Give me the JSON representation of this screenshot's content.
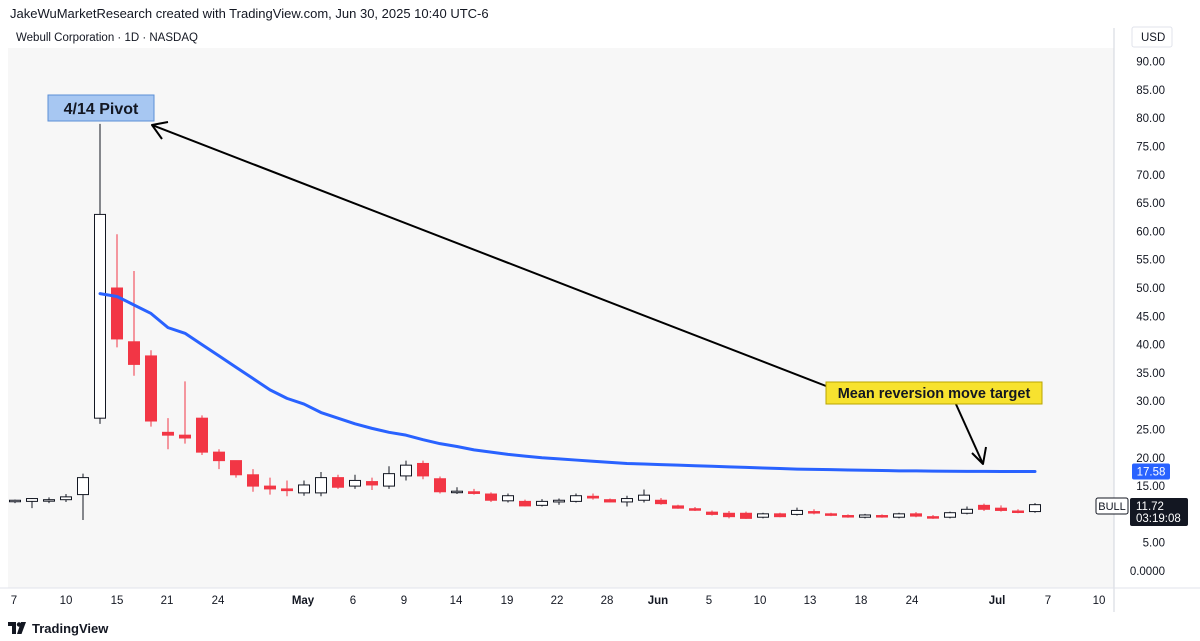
{
  "header": {
    "caption": "JakeWuMarketResearch created with TradingView.com, Jun 30, 2025 10:40 UTC-6",
    "symbol_line": "Webull Corporation · 1D · NASDAQ",
    "currency": "USD"
  },
  "footer": {
    "brand": "TradingView"
  },
  "colors": {
    "up_body": "#ffffff",
    "up_border": "#131722",
    "down": "#f23645",
    "ma_line": "#2962ff",
    "arrow": "#000000",
    "pivot_label_bg": "#a7c7f2",
    "target_label_bg": "#f7e22f",
    "plot_bg": "#f7f7f7",
    "last_price_bg": "#131722",
    "ma_price_bg": "#2962ff"
  },
  "chart_data": {
    "type": "candlestick",
    "y_axis_ticks": [
      "90.00",
      "85.00",
      "80.00",
      "75.00",
      "70.00",
      "65.00",
      "60.00",
      "55.00",
      "50.00",
      "45.00",
      "40.00",
      "35.00",
      "30.00",
      "25.00",
      "20.00",
      "15.00",
      "10.00",
      "5.00",
      "0.0000"
    ],
    "ylim": [
      0,
      90
    ],
    "x_axis_labels": [
      "7",
      "10",
      "15",
      "21",
      "24",
      "May",
      "6",
      "9",
      "14",
      "19",
      "22",
      "28",
      "Jun",
      "5",
      "10",
      "13",
      "18",
      "24",
      "Jul",
      "7",
      "10"
    ],
    "candles": [
      {
        "o": 12.4,
        "h": 12.6,
        "l": 12.0,
        "c": 12.5
      },
      {
        "o": 12.3,
        "h": 12.9,
        "l": 11.1,
        "c": 12.8
      },
      {
        "o": 12.5,
        "h": 13.0,
        "l": 12.0,
        "c": 12.6
      },
      {
        "o": 12.6,
        "h": 13.6,
        "l": 12.2,
        "c": 13.1
      },
      {
        "o": 13.5,
        "h": 17.2,
        "l": 9.0,
        "c": 16.5
      },
      {
        "o": 27.0,
        "h": 79.0,
        "l": 26.0,
        "c": 63.0
      },
      {
        "o": 50.0,
        "h": 59.5,
        "l": 39.5,
        "c": 41.0
      },
      {
        "o": 40.5,
        "h": 53.0,
        "l": 34.5,
        "c": 36.5
      },
      {
        "o": 38.0,
        "h": 39.0,
        "l": 25.5,
        "c": 26.5
      },
      {
        "o": 24.5,
        "h": 27.0,
        "l": 21.5,
        "c": 24.0
      },
      {
        "o": 24.0,
        "h": 33.5,
        "l": 22.5,
        "c": 23.5
      },
      {
        "o": 27.0,
        "h": 27.5,
        "l": 20.5,
        "c": 21.0
      },
      {
        "o": 21.0,
        "h": 21.5,
        "l": 18.0,
        "c": 19.5
      },
      {
        "o": 19.5,
        "h": 19.5,
        "l": 16.5,
        "c": 17.0
      },
      {
        "o": 17.0,
        "h": 18.0,
        "l": 14.0,
        "c": 15.0
      },
      {
        "o": 15.0,
        "h": 16.5,
        "l": 13.5,
        "c": 14.5
      },
      {
        "o": 14.5,
        "h": 16.0,
        "l": 13.2,
        "c": 14.2
      },
      {
        "o": 13.8,
        "h": 16.0,
        "l": 13.3,
        "c": 15.2
      },
      {
        "o": 13.8,
        "h": 17.5,
        "l": 13.2,
        "c": 16.5
      },
      {
        "o": 16.5,
        "h": 17.0,
        "l": 14.5,
        "c": 14.8
      },
      {
        "o": 15.0,
        "h": 17.0,
        "l": 14.5,
        "c": 16.0
      },
      {
        "o": 15.8,
        "h": 16.5,
        "l": 14.3,
        "c": 15.2
      },
      {
        "o": 15.0,
        "h": 18.5,
        "l": 14.5,
        "c": 17.2
      },
      {
        "o": 16.8,
        "h": 19.5,
        "l": 16.0,
        "c": 18.7
      },
      {
        "o": 19.0,
        "h": 19.5,
        "l": 16.2,
        "c": 16.8
      },
      {
        "o": 16.3,
        "h": 16.7,
        "l": 13.7,
        "c": 14.0
      },
      {
        "o": 14.0,
        "h": 14.8,
        "l": 13.6,
        "c": 14.1
      },
      {
        "o": 14.0,
        "h": 14.5,
        "l": 13.5,
        "c": 13.7
      },
      {
        "o": 13.6,
        "h": 13.9,
        "l": 12.2,
        "c": 12.5
      },
      {
        "o": 12.4,
        "h": 13.7,
        "l": 12.1,
        "c": 13.3
      },
      {
        "o": 12.3,
        "h": 12.6,
        "l": 11.4,
        "c": 11.5
      },
      {
        "o": 11.6,
        "h": 12.7,
        "l": 11.4,
        "c": 12.3
      },
      {
        "o": 12.2,
        "h": 12.8,
        "l": 11.7,
        "c": 12.5
      },
      {
        "o": 12.3,
        "h": 13.7,
        "l": 12.1,
        "c": 13.3
      },
      {
        "o": 13.2,
        "h": 13.7,
        "l": 12.6,
        "c": 12.9
      },
      {
        "o": 12.6,
        "h": 12.8,
        "l": 12.1,
        "c": 12.2
      },
      {
        "o": 12.2,
        "h": 13.3,
        "l": 11.4,
        "c": 12.8
      },
      {
        "o": 12.5,
        "h": 14.4,
        "l": 12.1,
        "c": 13.4
      },
      {
        "o": 12.5,
        "h": 12.9,
        "l": 11.7,
        "c": 11.9
      },
      {
        "o": 11.5,
        "h": 11.7,
        "l": 11.0,
        "c": 11.1
      },
      {
        "o": 11.0,
        "h": 11.3,
        "l": 10.6,
        "c": 10.8
      },
      {
        "o": 10.4,
        "h": 10.7,
        "l": 9.8,
        "c": 10.0
      },
      {
        "o": 10.2,
        "h": 10.6,
        "l": 9.3,
        "c": 9.6
      },
      {
        "o": 10.2,
        "h": 10.5,
        "l": 9.2,
        "c": 9.3
      },
      {
        "o": 9.5,
        "h": 10.3,
        "l": 9.3,
        "c": 10.1
      },
      {
        "o": 10.1,
        "h": 10.3,
        "l": 9.5,
        "c": 9.6
      },
      {
        "o": 10.0,
        "h": 11.2,
        "l": 9.8,
        "c": 10.7
      },
      {
        "o": 10.5,
        "h": 10.9,
        "l": 10.0,
        "c": 10.3
      },
      {
        "o": 10.1,
        "h": 10.3,
        "l": 9.7,
        "c": 9.9
      },
      {
        "o": 9.8,
        "h": 10.0,
        "l": 9.4,
        "c": 9.6
      },
      {
        "o": 9.5,
        "h": 10.1,
        "l": 9.3,
        "c": 9.9
      },
      {
        "o": 9.8,
        "h": 10.0,
        "l": 9.4,
        "c": 9.6
      },
      {
        "o": 9.5,
        "h": 10.3,
        "l": 9.3,
        "c": 10.1
      },
      {
        "o": 10.1,
        "h": 10.4,
        "l": 9.5,
        "c": 9.7
      },
      {
        "o": 9.6,
        "h": 9.9,
        "l": 9.2,
        "c": 9.5
      },
      {
        "o": 9.5,
        "h": 10.5,
        "l": 9.3,
        "c": 10.3
      },
      {
        "o": 10.2,
        "h": 11.4,
        "l": 10.0,
        "c": 10.9
      },
      {
        "o": 11.6,
        "h": 11.9,
        "l": 10.6,
        "c": 10.9
      },
      {
        "o": 11.1,
        "h": 11.6,
        "l": 10.5,
        "c": 10.7
      },
      {
        "o": 10.6,
        "h": 10.9,
        "l": 10.2,
        "c": 10.5
      },
      {
        "o": 10.5,
        "h": 12.0,
        "l": 10.3,
        "c": 11.72
      }
    ],
    "series": [
      {
        "type": "line",
        "points": [
          [
            5,
            49.0
          ],
          [
            6,
            48.5
          ],
          [
            7,
            47.0
          ],
          [
            8,
            45.5
          ],
          [
            9,
            43.0
          ],
          [
            10,
            42.0
          ],
          [
            11,
            40.0
          ],
          [
            12,
            38.0
          ],
          [
            13,
            36.0
          ],
          [
            14,
            34.0
          ],
          [
            15,
            32.0
          ],
          [
            16,
            30.5
          ],
          [
            17,
            29.5
          ],
          [
            18,
            28.0
          ],
          [
            19,
            27.0
          ],
          [
            20,
            26.0
          ],
          [
            21,
            25.2
          ],
          [
            22,
            24.5
          ],
          [
            23,
            24.0
          ],
          [
            24,
            23.2
          ],
          [
            25,
            22.5
          ],
          [
            26,
            22.0
          ],
          [
            27,
            21.4
          ],
          [
            28,
            21.0
          ],
          [
            29,
            20.6
          ],
          [
            30,
            20.3
          ],
          [
            31,
            20.0
          ],
          [
            32,
            19.8
          ],
          [
            33,
            19.6
          ],
          [
            34,
            19.4
          ],
          [
            35,
            19.2
          ],
          [
            36,
            19.0
          ],
          [
            37,
            18.9
          ],
          [
            38,
            18.8
          ],
          [
            39,
            18.7
          ],
          [
            40,
            18.6
          ],
          [
            41,
            18.5
          ],
          [
            42,
            18.4
          ],
          [
            43,
            18.3
          ],
          [
            44,
            18.2
          ],
          [
            45,
            18.1
          ],
          [
            46,
            18.0
          ],
          [
            47,
            17.95
          ],
          [
            48,
            17.9
          ],
          [
            49,
            17.85
          ],
          [
            50,
            17.8
          ],
          [
            51,
            17.75
          ],
          [
            52,
            17.7
          ],
          [
            53,
            17.68
          ],
          [
            54,
            17.65
          ],
          [
            55,
            17.63
          ],
          [
            56,
            17.61
          ],
          [
            57,
            17.6
          ],
          [
            58,
            17.59
          ],
          [
            59,
            17.585
          ],
          [
            60,
            17.58
          ]
        ]
      }
    ],
    "annotations": {
      "pivot_label": "4/14 Pivot",
      "target_label": "Mean reversion move target",
      "ma_price": "17.58",
      "ticker": "BULL",
      "last_price": "11.72",
      "countdown": "03:19:08"
    }
  }
}
